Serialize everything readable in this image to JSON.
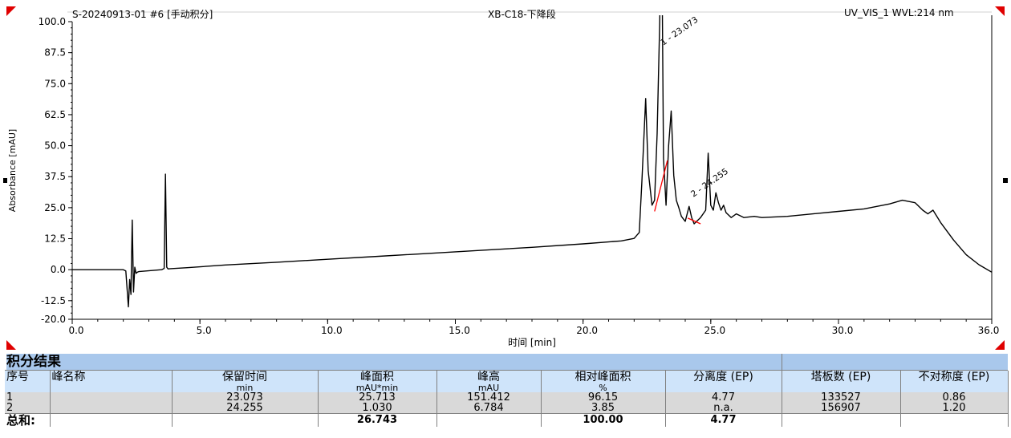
{
  "header": {
    "sample": "S-20240913-01 #6 [手动积分]",
    "method": "XB-C18-下降段",
    "channel": "UV_VIS_1 WVL:214 nm"
  },
  "chart_data": {
    "type": "line",
    "xlabel": "时间 [min]",
    "ylabel": "Absorbance [mAU]",
    "xlim": [
      0.0,
      36.0
    ],
    "ylim": [
      -20.0,
      100.0
    ],
    "x_ticks": [
      "0.0",
      "5.0",
      "10.0",
      "15.0",
      "20.0",
      "25.0",
      "30.0",
      "36.0"
    ],
    "y_ticks": [
      "-20.0",
      "-12.5",
      "0.0",
      "12.5",
      "25.0",
      "37.5",
      "50.0",
      "62.5",
      "75.0",
      "87.5",
      "100.0"
    ],
    "series": [
      {
        "x": [
          0.0,
          2.0,
          2.1,
          2.2,
          2.25,
          2.3,
          2.35,
          2.4,
          2.45,
          2.5,
          2.55,
          2.6,
          3.5,
          3.6,
          3.65,
          3.7,
          3.75,
          3.85,
          4.5,
          6.0,
          8.0,
          10.0,
          12.0,
          14.0,
          16.0,
          18.0,
          20.0,
          21.5,
          22.0,
          22.2,
          22.3,
          22.45,
          22.55,
          22.7,
          22.8,
          22.9,
          23.0,
          23.07,
          23.15,
          23.25,
          23.35,
          23.45,
          23.55,
          23.65,
          23.75,
          23.85,
          24.0,
          24.15,
          24.25,
          24.35,
          24.45,
          24.6,
          24.8,
          24.9,
          25.0,
          25.1,
          25.2,
          25.3,
          25.4,
          25.5,
          25.6,
          25.7,
          25.8,
          26.0,
          26.3,
          26.7,
          27.0,
          28.0,
          29.0,
          30.0,
          31.0,
          32.0,
          32.5,
          33.0,
          33.3,
          33.5,
          33.7,
          34.0,
          34.5,
          35.0,
          35.5,
          36.0
        ],
        "y": [
          0.0,
          0.0,
          -0.5,
          -15.0,
          -4.0,
          -10.0,
          20.0,
          -9.0,
          1.0,
          -1.5,
          -1.0,
          -0.8,
          0.0,
          0.5,
          38.5,
          1.0,
          0.3,
          0.4,
          0.8,
          1.9,
          3.0,
          4.2,
          5.4,
          6.6,
          7.8,
          9.0,
          10.4,
          11.6,
          12.6,
          15.0,
          35.0,
          69.0,
          40.0,
          26.0,
          28.0,
          55.0,
          100.0,
          151.0,
          45.0,
          26.0,
          50.0,
          64.0,
          38.0,
          28.0,
          25.0,
          21.5,
          19.5,
          25.5,
          21.0,
          18.5,
          19.5,
          21.0,
          24.0,
          47.0,
          26.0,
          24.0,
          31.0,
          27.0,
          24.0,
          26.0,
          23.0,
          22.0,
          21.0,
          22.5,
          21.0,
          21.5,
          21.0,
          21.5,
          22.5,
          23.5,
          24.5,
          26.5,
          28.0,
          27.0,
          24.0,
          22.5,
          24.0,
          19.0,
          12.0,
          6.0,
          2.0,
          -1.0
        ]
      }
    ],
    "peaks": [
      {
        "label": "1 - 23.073",
        "x": 23.073
      },
      {
        "label": "2 - 24.255",
        "x": 24.255
      }
    ],
    "baselines": [
      {
        "x": [
          22.8,
          23.3
        ],
        "y": [
          23.5,
          44.0
        ]
      },
      {
        "x": [
          24.1,
          24.6
        ],
        "y": [
          20.8,
          18.5
        ]
      }
    ],
    "colors": {
      "trace": "#000000",
      "baseline": "#ff0000",
      "marker": "#e00000"
    }
  },
  "results": {
    "title": "积分结果",
    "columns": [
      {
        "name": "序号",
        "unit": ""
      },
      {
        "name": "峰名称",
        "unit": ""
      },
      {
        "name": "保留时间",
        "unit": "min"
      },
      {
        "name": "峰面积",
        "unit": "mAU*min"
      },
      {
        "name": "峰高",
        "unit": "mAU"
      },
      {
        "name": "相对峰面积",
        "unit": "%"
      },
      {
        "name": "分离度 (EP)",
        "unit": ""
      },
      {
        "name": "塔板数 (EP)",
        "unit": ""
      },
      {
        "name": "不对称度 (EP)",
        "unit": ""
      }
    ],
    "rows": [
      [
        "1",
        "",
        "23.073",
        "25.713",
        "151.412",
        "96.15",
        "4.77",
        "133527",
        "0.86"
      ],
      [
        "2",
        "",
        "24.255",
        "1.030",
        "6.784",
        "3.85",
        "n.a.",
        "156907",
        "1.20"
      ]
    ],
    "sum": [
      "总和:",
      "",
      "",
      "26.743",
      "",
      "100.00",
      "4.77",
      "",
      ""
    ]
  }
}
